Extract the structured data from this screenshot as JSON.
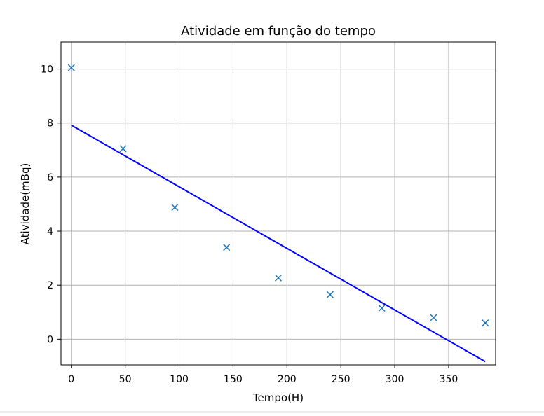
{
  "chart_data": {
    "type": "scatter",
    "title": "Atividade em função do tempo",
    "xlabel": "Tempo(H)",
    "ylabel": "Atividade(mBq)",
    "xlim": [
      -9.6,
      393.6
    ],
    "ylim": [
      -0.95,
      11.0
    ],
    "xticks": [
      0,
      50,
      100,
      150,
      200,
      250,
      300,
      350
    ],
    "yticks": [
      0,
      2,
      4,
      6,
      8,
      10
    ],
    "grid": true,
    "series": [
      {
        "kind": "points",
        "marker": "x",
        "color": "#1f77b4",
        "x": [
          0,
          48,
          96,
          144,
          192,
          240,
          288,
          336,
          384
        ],
        "y": [
          10.05,
          7.05,
          4.88,
          3.4,
          2.27,
          1.65,
          1.15,
          0.8,
          0.6
        ]
      },
      {
        "kind": "line",
        "color": "#0000ff",
        "x": [
          0,
          384
        ],
        "y": [
          7.92,
          -0.83
        ]
      }
    ]
  }
}
